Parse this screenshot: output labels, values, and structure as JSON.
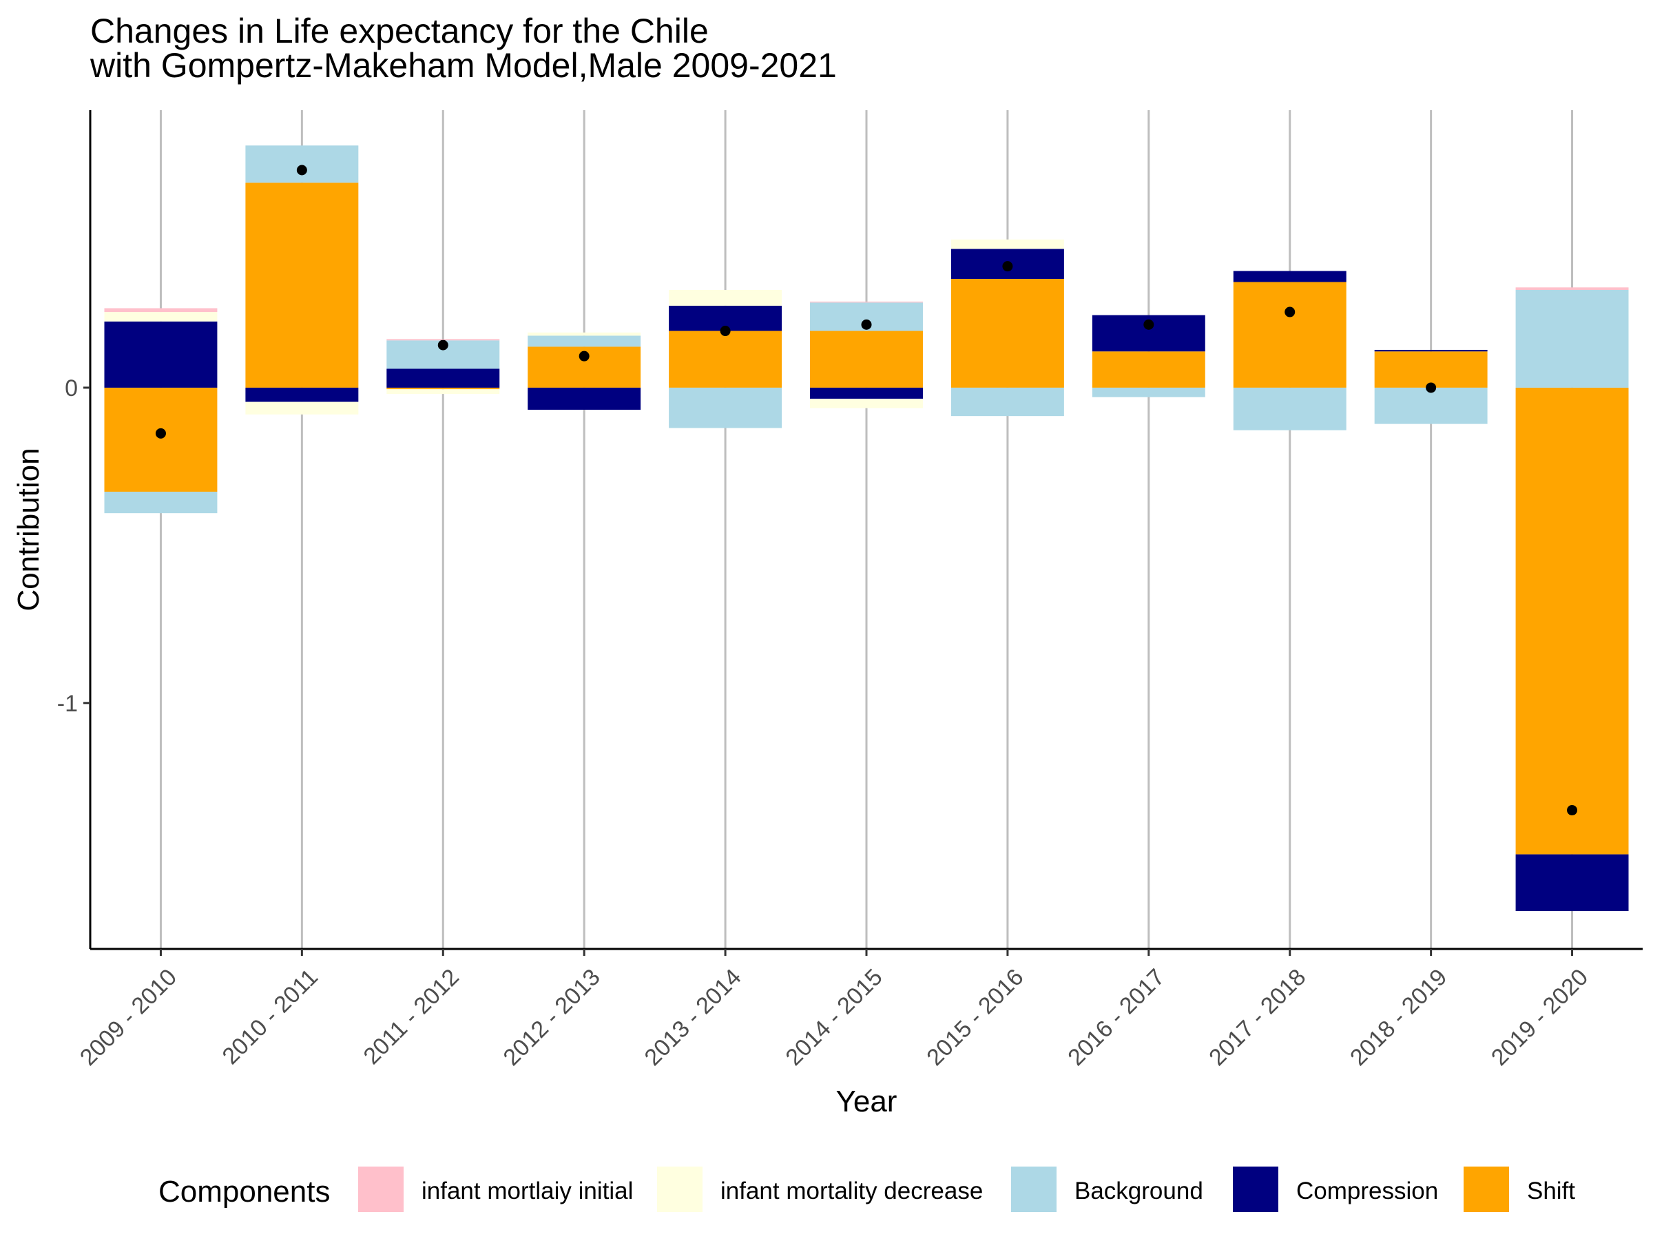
{
  "chart_data": {
    "type": "bar",
    "stacked": true,
    "diverging": true,
    "title_lines": [
      "Changes in Life expectancy for the Chile",
      " with Gompertz-Makeham Model,Male 2009-2021"
    ],
    "xlabel": "Year",
    "ylabel": "Contribution",
    "ylim": [
      -1.78,
      0.88
    ],
    "yticks": [
      0,
      -1
    ],
    "ytick_labels": [
      "0",
      "-1"
    ],
    "grid": "vertical-major",
    "legend": {
      "title": "Components",
      "placement": "bottom"
    },
    "colors": {
      "Shift": "#FFA500",
      "Compression": "#000080",
      "Background": "#ADD8E6",
      "infant mortality decrease": "#FFFFE0",
      "infant mortlaiy initial": "#FFC0CB",
      "total_marker": "#000000",
      "grid": "#BEBEBE"
    },
    "categories": [
      "2009 - 2010",
      "2010 - 2011",
      "2011 - 2012",
      "2012 - 2013",
      "2013 - 2014",
      "2014 - 2015",
      "2015 - 2016",
      "2016 - 2017",
      "2017 - 2018",
      "2018 - 2019",
      "2019 - 2020"
    ],
    "stack_order": [
      "Shift",
      "Compression",
      "Background",
      "infant mortality decrease",
      "infant mortlaiy initial"
    ],
    "legend_order": [
      "infant mortlaiy initial",
      "infant mortality decrease",
      "Background",
      "Compression",
      "Shift"
    ],
    "series": [
      {
        "name": "infant mortlaiy initial",
        "values": [
          0.012,
          0.0,
          0.004,
          0.0,
          0.0,
          0.003,
          0.0,
          0.0,
          0.0,
          0.0,
          0.008
        ]
      },
      {
        "name": "infant mortality decrease",
        "values": [
          0.03,
          -0.04,
          -0.015,
          0.01,
          0.05,
          -0.03,
          0.03,
          0.0,
          0.0,
          0.0,
          0.0
        ]
      },
      {
        "name": "Background",
        "values": [
          -0.068,
          0.118,
          0.09,
          0.035,
          -0.128,
          0.09,
          -0.09,
          -0.03,
          -0.135,
          -0.115,
          0.31
        ]
      },
      {
        "name": "Compression",
        "values": [
          0.21,
          -0.045,
          0.06,
          -0.07,
          0.08,
          -0.035,
          0.095,
          0.115,
          0.035,
          0.005,
          -0.18
        ]
      },
      {
        "name": "Shift",
        "values": [
          -0.33,
          0.65,
          -0.005,
          0.13,
          0.18,
          0.18,
          0.345,
          0.115,
          0.335,
          0.115,
          -1.48
        ]
      }
    ],
    "totals": {
      "name": "Total",
      "values": [
        -0.145,
        0.69,
        0.135,
        0.1,
        0.18,
        0.2,
        0.385,
        0.2,
        0.24,
        0.0,
        -1.34
      ]
    }
  }
}
